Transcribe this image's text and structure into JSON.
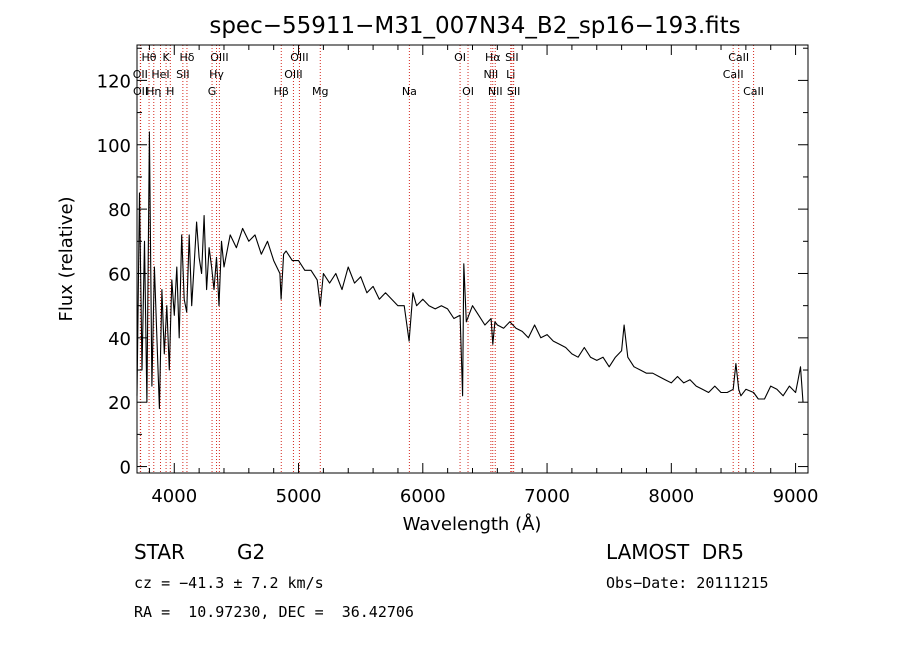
{
  "chart_data": {
    "type": "line",
    "title": "spec−55911−M31_007N34_B2_sp16−193.fits",
    "xlabel": "Wavelength (Å)",
    "ylabel": "Flux (relative)",
    "xlim": [
      3700,
      9100
    ],
    "ylim": [
      -2,
      131
    ],
    "xticks": [
      4000,
      5000,
      6000,
      7000,
      8000,
      9000
    ],
    "yticks": [
      0,
      20,
      40,
      60,
      80,
      100,
      120
    ],
    "grid": false,
    "series": [
      {
        "x": [
          3700,
          3720,
          3740,
          3760,
          3780,
          3800,
          3820,
          3840,
          3860,
          3880,
          3900,
          3920,
          3940,
          3960,
          3980,
          4000,
          4020,
          4040,
          4060,
          4080,
          4100,
          4120,
          4140,
          4160,
          4180,
          4200,
          4220,
          4240,
          4260,
          4280,
          4300,
          4320,
          4340,
          4360,
          4380,
          4400,
          4450,
          4500,
          4550,
          4600,
          4650,
          4700,
          4750,
          4800,
          4850,
          4860,
          4880,
          4900,
          4950,
          5000,
          5050,
          5100,
          5150,
          5175,
          5200,
          5250,
          5300,
          5350,
          5400,
          5450,
          5500,
          5550,
          5600,
          5650,
          5700,
          5750,
          5800,
          5850,
          5890,
          5920,
          5950,
          6000,
          6050,
          6100,
          6150,
          6200,
          6250,
          6300,
          6320,
          6330,
          6350,
          6400,
          6450,
          6500,
          6550,
          6563,
          6580,
          6600,
          6650,
          6700,
          6750,
          6800,
          6850,
          6900,
          6950,
          7000,
          7050,
          7100,
          7150,
          7200,
          7250,
          7300,
          7350,
          7400,
          7450,
          7500,
          7550,
          7600,
          7620,
          7650,
          7700,
          7750,
          7800,
          7850,
          7900,
          7950,
          8000,
          8050,
          8100,
          8150,
          8200,
          8250,
          8300,
          8350,
          8400,
          8450,
          8498,
          8520,
          8542,
          8560,
          8600,
          8662,
          8700,
          8750,
          8800,
          8850,
          8900,
          8950,
          9000,
          9020,
          9040,
          9060
        ],
        "y": [
          22,
          85,
          30,
          70,
          20,
          104,
          25,
          62,
          40,
          18,
          55,
          35,
          50,
          30,
          58,
          47,
          62,
          40,
          72,
          52,
          48,
          72,
          50,
          63,
          76,
          65,
          60,
          78,
          55,
          68,
          62,
          55,
          65,
          50,
          70,
          62,
          72,
          68,
          74,
          70,
          72,
          66,
          70,
          64,
          60,
          52,
          66,
          67,
          64,
          64,
          61,
          61,
          58,
          50,
          60,
          57,
          60,
          55,
          62,
          57,
          59,
          54,
          56,
          52,
          54,
          52,
          50,
          50,
          39,
          54,
          50,
          52,
          50,
          49,
          50,
          49,
          46,
          47,
          22,
          63,
          45,
          50,
          47,
          44,
          46,
          38,
          45,
          44,
          43,
          45,
          43,
          42,
          40,
          44,
          40,
          41,
          39,
          38,
          37,
          35,
          34,
          37,
          34,
          33,
          34,
          31,
          34,
          36,
          44,
          34,
          31,
          30,
          29,
          29,
          28,
          27,
          26,
          28,
          26,
          27,
          25,
          24,
          23,
          25,
          23,
          23,
          24,
          32,
          24,
          22,
          24,
          23,
          21,
          21,
          25,
          24,
          22,
          25,
          23,
          27,
          31,
          20
        ]
      }
    ],
    "line_labels": [
      {
        "label": "Hθ",
        "x": 3797,
        "row": 1
      },
      {
        "label": "K",
        "x": 3934,
        "row": 1
      },
      {
        "label": "Hδ",
        "x": 4102,
        "row": 1
      },
      {
        "label": "OIII",
        "x": 4363,
        "row": 1
      },
      {
        "label": "OIII",
        "x": 5007,
        "row": 1
      },
      {
        "label": "OI",
        "x": 6300,
        "row": 1
      },
      {
        "label": "Hα",
        "x": 6563,
        "row": 1
      },
      {
        "label": "SII",
        "x": 6717,
        "row": 1
      },
      {
        "label": "CaII",
        "x": 8542,
        "row": 1
      },
      {
        "label": "OII",
        "x": 3727,
        "row": 2
      },
      {
        "label": "HeI",
        "x": 3889,
        "row": 2
      },
      {
        "label": "SII",
        "x": 4069,
        "row": 2
      },
      {
        "label": "Hγ",
        "x": 4340,
        "row": 2
      },
      {
        "label": "OIII",
        "x": 4959,
        "row": 2
      },
      {
        "label": "NII",
        "x": 6548,
        "row": 2
      },
      {
        "label": "Li",
        "x": 6708,
        "row": 2
      },
      {
        "label": "CaII",
        "x": 8498,
        "row": 2
      },
      {
        "label": "OII",
        "x": 3729,
        "row": 3
      },
      {
        "label": "Hη",
        "x": 3835,
        "row": 3
      },
      {
        "label": "H",
        "x": 3968,
        "row": 3
      },
      {
        "label": "G",
        "x": 4304,
        "row": 3
      },
      {
        "label": "Hβ",
        "x": 4861,
        "row": 3
      },
      {
        "label": "Mg",
        "x": 5175,
        "row": 3
      },
      {
        "label": "Na",
        "x": 5892,
        "row": 3
      },
      {
        "label": "OI",
        "x": 6364,
        "row": 3
      },
      {
        "label": "NII",
        "x": 6583,
        "row": 3
      },
      {
        "label": "SII",
        "x": 6731,
        "row": 3
      },
      {
        "label": "CaII",
        "x": 8662,
        "row": 3
      }
    ],
    "line_color": "#d4281e"
  },
  "info": {
    "class": "STAR",
    "subclass": "G2",
    "survey": "LAMOST  DR5",
    "cz": "cz = −41.3 ± 7.2 km/s",
    "obs_date": "Obs−Date: 20111215",
    "coords": "RA =  10.97230, DEC =  36.42706"
  }
}
